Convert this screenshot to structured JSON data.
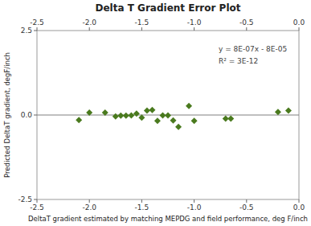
{
  "chart_data": {
    "type": "scatter",
    "title": "Delta T Gradient Error Plot",
    "x_label": "DeltaT gradient estimated by matching MEPDG and field performance, deg F/inch",
    "y_label": "Predicted DeltaT gradient, degF/inch",
    "x": [
      -2.1,
      -2.0,
      -1.85,
      -1.75,
      -1.7,
      -1.65,
      -1.6,
      -1.55,
      -1.5,
      -1.45,
      -1.4,
      -1.35,
      -1.3,
      -1.25,
      -1.2,
      -1.15,
      -1.05,
      -1.0,
      -0.7,
      -0.65,
      -0.2,
      -0.1
    ],
    "values": [
      -0.15,
      0.07,
      0.07,
      -0.04,
      -0.015,
      -0.015,
      -0.01,
      0.04,
      -0.08,
      0.13,
      0.15,
      -0.17,
      -0.01,
      -0.01,
      -0.16,
      -0.35,
      0.27,
      -0.17,
      -0.11,
      -0.11,
      0.09,
      0.13
    ],
    "color": "#4a7a1e",
    "marker": "diamond",
    "trend": {
      "x": [
        -2.5,
        0
      ],
      "values": [
        0.0,
        0.0
      ]
    },
    "annotations": [
      "y = 8E-07x - 8E-05",
      "R² = 3E-12"
    ],
    "xlim": [
      -2.5,
      0
    ],
    "ylim": [
      -2.5,
      2.5
    ],
    "xticks": [
      -2.5,
      {
        "value": -2,
        "label": "-2.0"
      },
      -1.5,
      {
        "value": -1,
        "label": "-1.0"
      },
      -0.5,
      {
        "value": 0,
        "label": "0.0"
      }
    ],
    "yticks": [
      -2.5,
      {
        "value": 0,
        "label": "0.0"
      },
      2.5
    ],
    "grid": false
  }
}
